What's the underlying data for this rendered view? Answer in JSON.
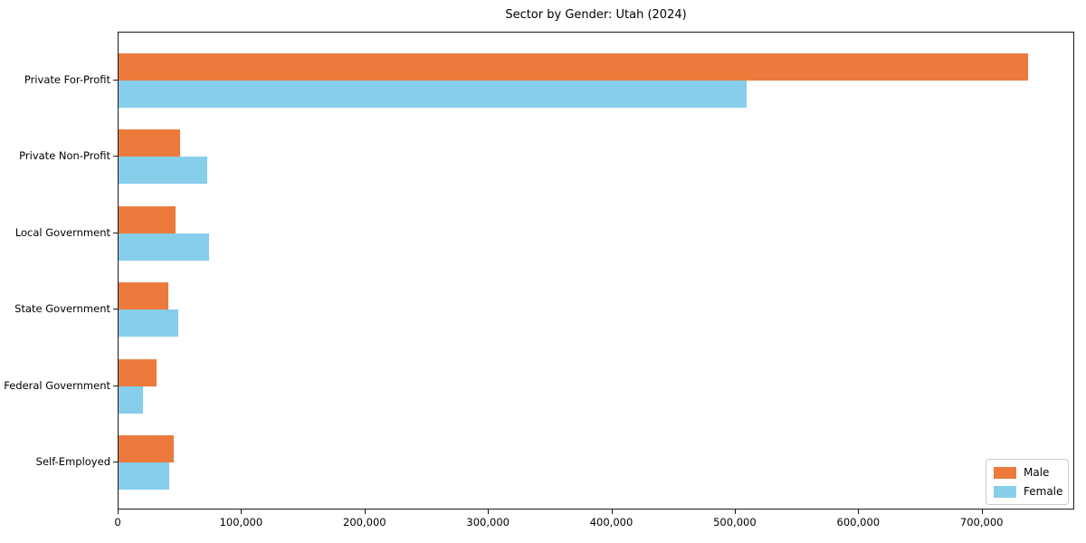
{
  "chart_data": {
    "type": "bar",
    "orientation": "horizontal",
    "title": "Sector by Gender: Utah (2024)",
    "categories": [
      "Private For-Profit",
      "Private Non-Profit",
      "Local Government",
      "State Government",
      "Federal Government",
      "Self-Employed"
    ],
    "series": [
      {
        "name": "Male",
        "color": "#EC7A3C",
        "values": [
          737000,
          50000,
          46000,
          40000,
          31000,
          45000
        ]
      },
      {
        "name": "Female",
        "color": "#87CEEB",
        "values": [
          509000,
          72000,
          73000,
          48000,
          20000,
          41000
        ]
      }
    ],
    "xlabel": "",
    "ylabel": "",
    "xlim": [
      0,
      775000
    ],
    "xtick_values": [
      0,
      100000,
      200000,
      300000,
      400000,
      500000,
      600000,
      700000
    ],
    "xtick_labels": [
      "0",
      "100,000",
      "200,000",
      "300,000",
      "400,000",
      "500,000",
      "600,000",
      "700,000"
    ],
    "grid": false,
    "legend": {
      "position": "lower right"
    }
  }
}
